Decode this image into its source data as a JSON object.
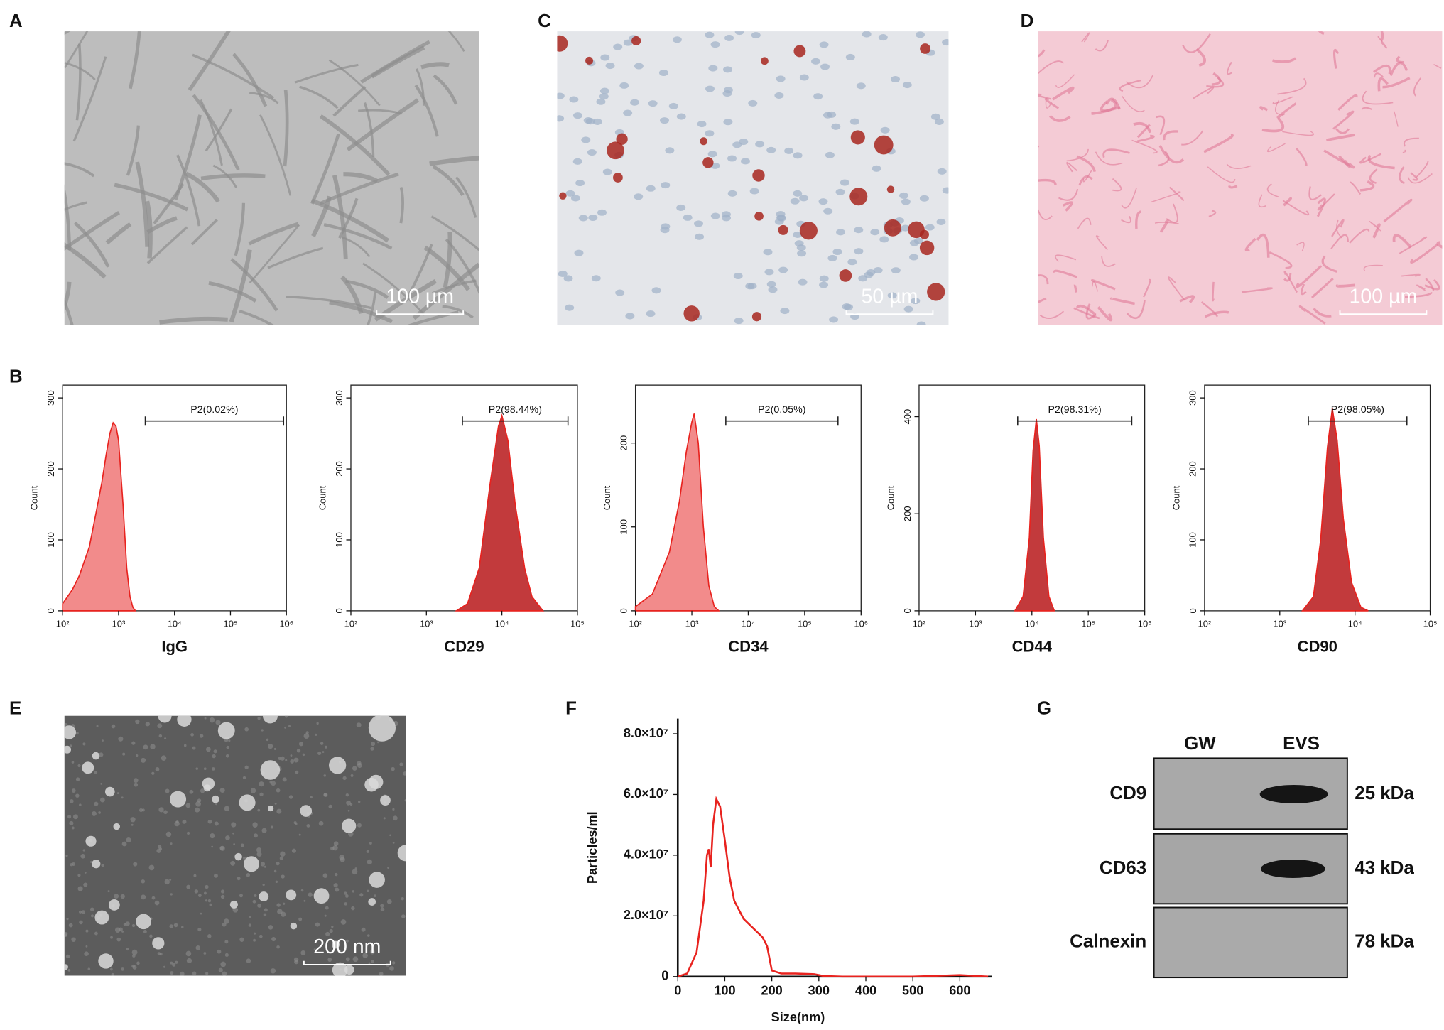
{
  "panel_labels": [
    "A",
    "C",
    "D",
    "B",
    "E",
    "F",
    "G"
  ],
  "micrographs": [
    {
      "scale_bar": "100 µm"
    },
    {
      "scale_bar": "50 µm"
    },
    {
      "scale_bar": "100 µm"
    },
    {
      "scale_bar": "200 nm"
    }
  ],
  "chart_data": [
    {
      "type": "area",
      "xlabel": "IgG",
      "ylabel": "Count",
      "xscale": "log",
      "frame": true,
      "xlim": [
        100,
        1000000
      ],
      "xticks": [
        {
          "value": 100,
          "label": "10²"
        },
        {
          "value": 1000,
          "label": "10³"
        },
        {
          "value": 10000,
          "label": "10⁴"
        },
        {
          "value": 100000,
          "label": "10⁵"
        },
        {
          "value": 1000000,
          "label": "10⁶"
        }
      ],
      "ylim": [
        0,
        318
      ],
      "yticks": [
        0,
        100,
        200,
        300
      ],
      "gate": {
        "label": "P2(0.02%)",
        "range": [
          3000,
          890000
        ]
      },
      "color": "#f28b8b",
      "edge_color": "#e8231f",
      "x": [
        100,
        150,
        200,
        300,
        400,
        500,
        600,
        700,
        800,
        900,
        1000,
        1200,
        1400,
        1600,
        1800,
        2000
      ],
      "values": [
        10,
        30,
        50,
        90,
        140,
        180,
        220,
        250,
        265,
        260,
        240,
        150,
        60,
        20,
        5,
        0
      ]
    },
    {
      "type": "area",
      "xlabel": "CD29",
      "ylabel": "Count",
      "xscale": "log",
      "frame": true,
      "xlim": [
        100,
        100000
      ],
      "xticks": [
        {
          "value": 100,
          "label": "10²"
        },
        {
          "value": 1000,
          "label": "10³"
        },
        {
          "value": 10000,
          "label": "10⁴"
        },
        {
          "value": 100000,
          "label": "10⁵"
        }
      ],
      "ylim": [
        0,
        318
      ],
      "yticks": [
        0,
        100,
        200,
        300
      ],
      "gate": {
        "label": "P2(98.44%)",
        "range": [
          3000,
          75000
        ]
      },
      "color": "#c23a3c",
      "edge_color": "#e8231f",
      "x": [
        2500,
        3500,
        5000,
        7000,
        9000,
        10000,
        12000,
        15000,
        20000,
        25000,
        35000
      ],
      "values": [
        0,
        10,
        60,
        180,
        260,
        275,
        240,
        150,
        60,
        20,
        0
      ]
    },
    {
      "type": "area",
      "xlabel": "CD34",
      "ylabel": "Count",
      "xscale": "log",
      "frame": true,
      "xlim": [
        100,
        1000000
      ],
      "xticks": [
        {
          "value": 100,
          "label": "10²"
        },
        {
          "value": 1000,
          "label": "10³"
        },
        {
          "value": 10000,
          "label": "10⁴"
        },
        {
          "value": 100000,
          "label": "10⁵"
        },
        {
          "value": 1000000,
          "label": "10⁶"
        }
      ],
      "ylim": [
        0,
        269
      ],
      "yticks": [
        0,
        100,
        200
      ],
      "gate": {
        "label": "P2(0.05%)",
        "range": [
          4000,
          390000
        ]
      },
      "color": "#f28b8b",
      "edge_color": "#e8231f",
      "x": [
        100,
        200,
        400,
        600,
        800,
        1000,
        1100,
        1300,
        1600,
        2000,
        2500,
        3000
      ],
      "values": [
        5,
        20,
        70,
        130,
        190,
        225,
        235,
        200,
        100,
        30,
        5,
        0
      ]
    },
    {
      "type": "area",
      "xlabel": "CD44",
      "ylabel": "Count",
      "xscale": "log",
      "frame": true,
      "xlim": [
        100,
        1000000
      ],
      "xticks": [
        {
          "value": 100,
          "label": "10²"
        },
        {
          "value": 1000,
          "label": "10³"
        },
        {
          "value": 10000,
          "label": "10⁴"
        },
        {
          "value": 100000,
          "label": "10⁵"
        },
        {
          "value": 1000000,
          "label": "10⁶"
        }
      ],
      "ylim": [
        0,
        465
      ],
      "yticks": [
        0,
        200,
        400
      ],
      "gate": {
        "label": "P2(98.31%)",
        "range": [
          5600,
          590000
        ]
      },
      "color": "#c23a3c",
      "edge_color": "#e8231f",
      "x": [
        5000,
        7000,
        9000,
        10500,
        12000,
        13500,
        16000,
        20000,
        25000
      ],
      "values": [
        0,
        30,
        150,
        330,
        395,
        340,
        150,
        30,
        0
      ]
    },
    {
      "type": "area",
      "xlabel": "CD90",
      "ylabel": "Count",
      "xscale": "log",
      "frame": true,
      "xlim": [
        100,
        100000
      ],
      "xticks": [
        {
          "value": 100,
          "label": "10²"
        },
        {
          "value": 1000,
          "label": "10³"
        },
        {
          "value": 10000,
          "label": "10⁴"
        },
        {
          "value": 100000,
          "label": "10⁵"
        }
      ],
      "ylim": [
        0,
        318
      ],
      "yticks": [
        0,
        100,
        200,
        300
      ],
      "gate": {
        "label": "P2(98.05%)",
        "range": [
          2400,
          49000
        ]
      },
      "color": "#c23a3c",
      "edge_color": "#e8231f",
      "x": [
        2000,
        2800,
        3500,
        4300,
        5000,
        5800,
        7000,
        9000,
        12000,
        15000
      ],
      "values": [
        0,
        20,
        100,
        230,
        285,
        240,
        130,
        40,
        5,
        0
      ]
    },
    {
      "type": "line",
      "xlabel": "Size(nm)",
      "ylabel": "Particles/ml",
      "frame": false,
      "xlim": [
        0,
        668
      ],
      "xticks": [
        0,
        100,
        200,
        300,
        400,
        500,
        600
      ],
      "ylim": [
        0,
        85000000
      ],
      "yticks": [
        0,
        {
          "value": 20000000,
          "label": "2.0×10⁷"
        },
        {
          "value": 40000000,
          "label": "4.0×10⁷"
        },
        {
          "value": 60000000,
          "label": "6.0×10⁷"
        },
        {
          "value": 80000000,
          "label": "8.0×10⁷"
        }
      ],
      "edge_color": "#e8231f",
      "x": [
        0,
        20,
        40,
        55,
        62,
        66,
        70,
        75,
        82,
        90,
        100,
        110,
        120,
        140,
        160,
        180,
        190,
        200,
        220,
        250,
        290,
        310,
        350,
        500,
        600,
        660
      ],
      "values": [
        0,
        1000000,
        8000000,
        25000000,
        40000000,
        42000000,
        36000000,
        50000000,
        58500000,
        56000000,
        45000000,
        33000000,
        25000000,
        19000000,
        16000000,
        13000000,
        10000000,
        2000000,
        1000000,
        1000000,
        800000,
        200000,
        0,
        0,
        500000,
        0
      ]
    }
  ],
  "blot": {
    "lanes": [
      "GW",
      "EVS"
    ],
    "rows": [
      {
        "name": "CD9",
        "size": "25 kDa"
      },
      {
        "name": "CD63",
        "size": "43 kDa"
      },
      {
        "name": "Calnexin",
        "size": "78 kDa"
      }
    ]
  }
}
